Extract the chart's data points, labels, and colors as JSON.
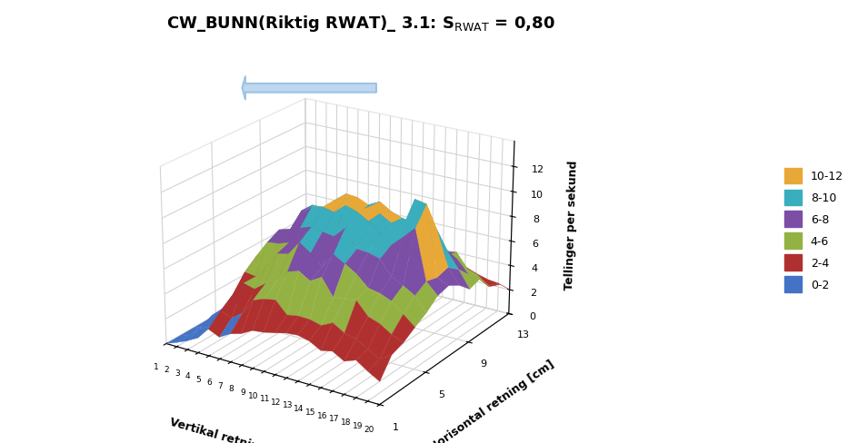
{
  "title": "CW_BUNN(Riktig RWAT)_ 3.1: S$_{\\mathrm{RWAT}}$ = 0,80",
  "xlabel": "Vertikal retning [cm]",
  "ylabel": "Horisontal retning [cm]",
  "zlabel": "Tellinger per sekund",
  "x_ticks": [
    1,
    2,
    3,
    4,
    5,
    6,
    7,
    8,
    9,
    10,
    11,
    12,
    13,
    14,
    15,
    16,
    17,
    18,
    19,
    20
  ],
  "y_ticks": [
    1,
    5,
    9,
    13
  ],
  "z_ticks": [
    0,
    2,
    4,
    6,
    8,
    10,
    12
  ],
  "zlim": [
    0,
    14
  ],
  "legend_labels": [
    "10-12",
    "8-10",
    "6-8",
    "4-6",
    "2-4",
    "0-2"
  ],
  "legend_colors": [
    "#E8A838",
    "#3AAEBD",
    "#7B4FA6",
    "#94B244",
    "#B03030",
    "#4472C4"
  ],
  "colormap_colors": [
    "#4472C4",
    "#B03030",
    "#94B244",
    "#7B4FA6",
    "#3AAEBD",
    "#E8A838"
  ],
  "colormap_bounds": [
    0,
    2,
    4,
    6,
    8,
    10,
    12
  ],
  "background_color": "#FFFFFF",
  "nx": 20,
  "ny": 13,
  "elev": 22,
  "azim": -57
}
